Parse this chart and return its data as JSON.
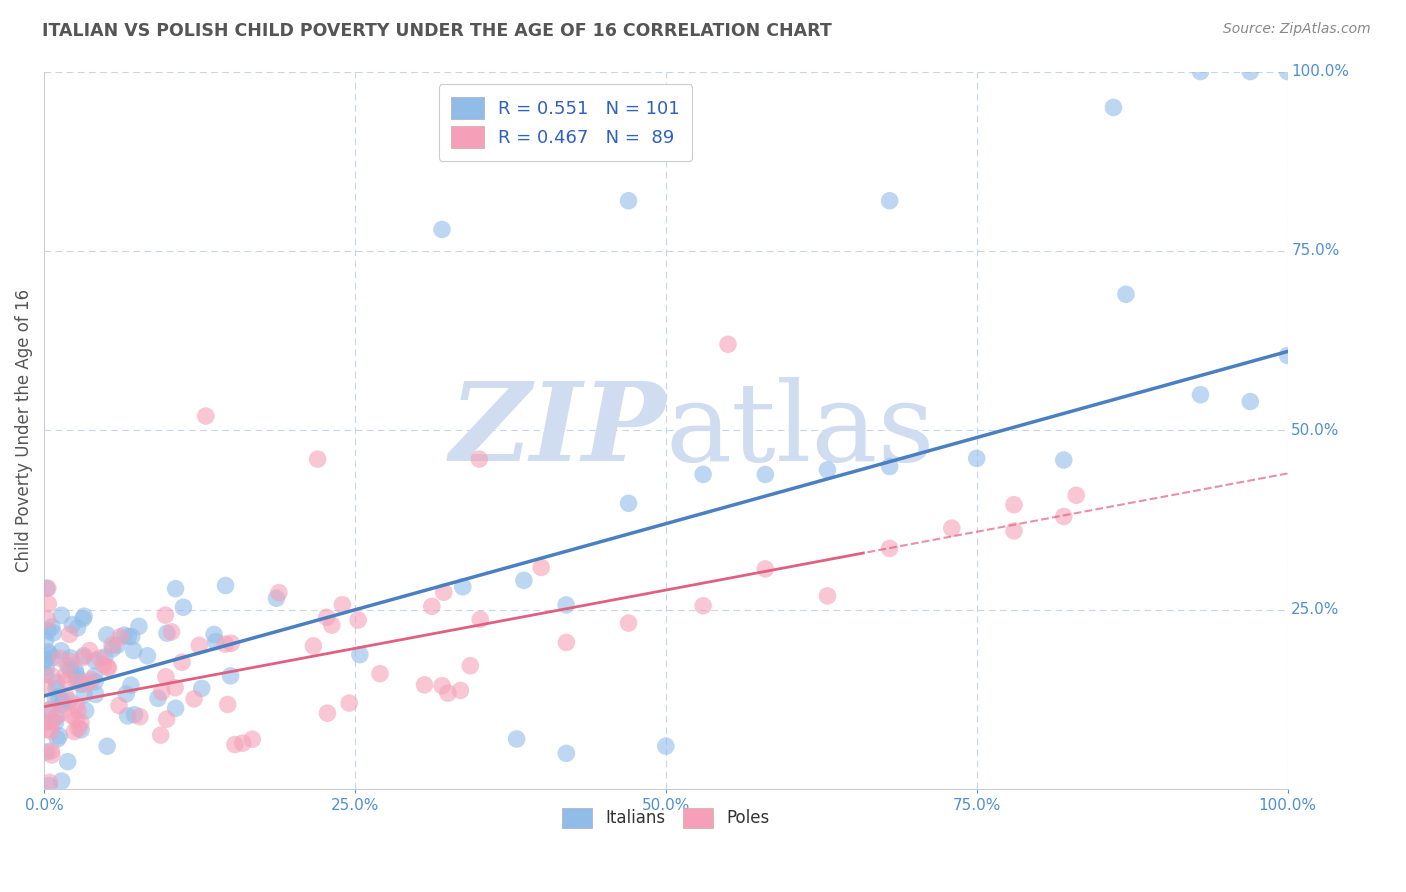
{
  "title": "ITALIAN VS POLISH CHILD POVERTY UNDER THE AGE OF 16 CORRELATION CHART",
  "source": "Source: ZipAtlas.com",
  "ylabel": "Child Poverty Under the Age of 16",
  "italian_R": 0.551,
  "italian_N": 101,
  "polish_R": 0.467,
  "polish_N": 89,
  "xlim": [
    0,
    1
  ],
  "ylim": [
    0,
    1
  ],
  "italian_color": "#92bce8",
  "polish_color": "#f5a0b8",
  "italian_line_color": "#4a7fc1",
  "polish_line_color": "#e06080",
  "background_color": "#ffffff",
  "grid_color": "#c8d4e8",
  "watermark_color": "#d0dcf0",
  "title_color": "#555555",
  "source_color": "#888888",
  "axis_color": "#5090d0",
  "it_line_start_y": 0.13,
  "it_line_end_y": 0.61,
  "pl_line_start_y": 0.115,
  "pl_line_end_y": 0.44
}
